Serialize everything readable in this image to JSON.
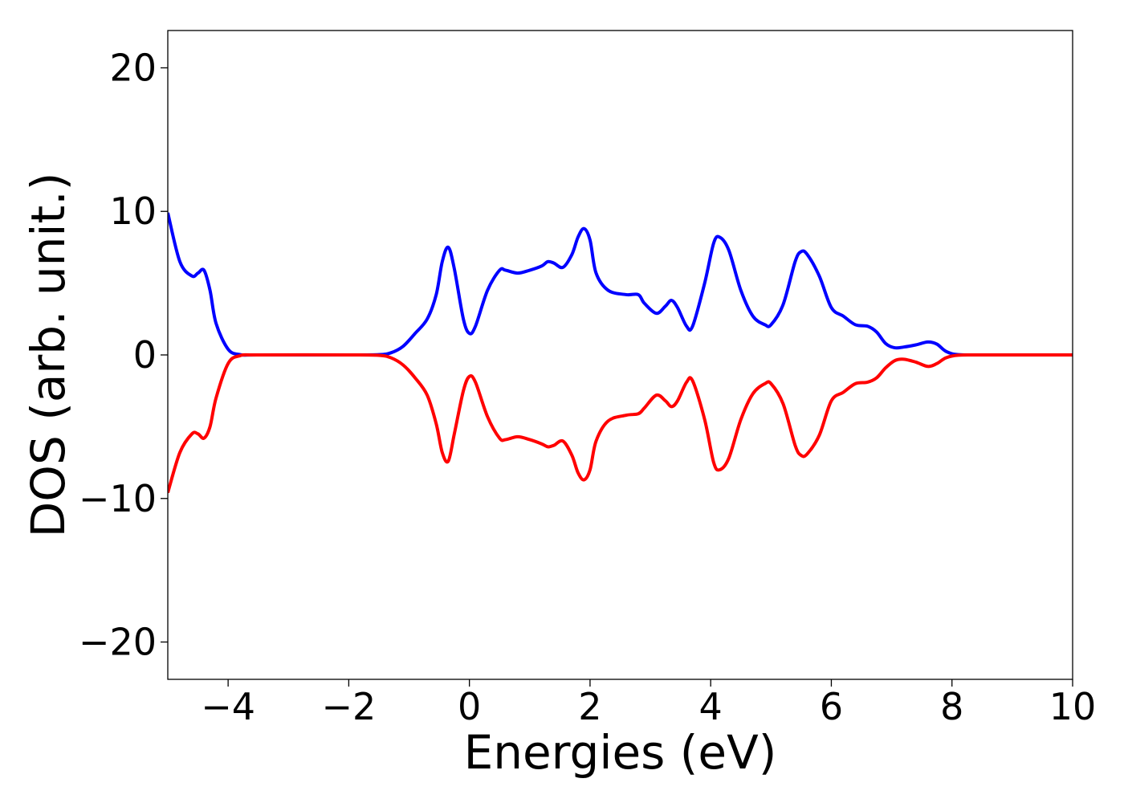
{
  "chart_data": {
    "type": "line",
    "title": "",
    "xlabel": "Energies (eV)",
    "ylabel": "DOS (arb. unit.)",
    "xlim": [
      -5,
      10
    ],
    "ylim": [
      -22.6,
      22.6
    ],
    "x_ticks": [
      {
        "value": -4,
        "label": "−4"
      },
      {
        "value": -2,
        "label": "−2"
      },
      {
        "value": 0,
        "label": "0"
      },
      {
        "value": 2,
        "label": "2"
      },
      {
        "value": 4,
        "label": "4"
      },
      {
        "value": 6,
        "label": "6"
      },
      {
        "value": 8,
        "label": "8"
      },
      {
        "value": 10,
        "label": "10"
      }
    ],
    "y_ticks": [
      {
        "value": 20,
        "label": "20"
      },
      {
        "value": 10,
        "label": "10"
      },
      {
        "value": 0,
        "label": "0"
      },
      {
        "value": -10,
        "label": "−10"
      },
      {
        "value": -20,
        "label": "−20"
      }
    ],
    "grid": false,
    "legend": "none",
    "series": [
      {
        "color": "#0000ff",
        "x": [
          -5,
          -4.8,
          -4.6,
          -4.5,
          -4.4,
          -4.3,
          -4.2,
          -4.0,
          -3.8,
          -3.5,
          -2.0,
          -1.5,
          -1.3,
          -1.1,
          -0.9,
          -0.7,
          -0.55,
          -0.45,
          -0.35,
          -0.25,
          -0.1,
          0.0,
          0.1,
          0.3,
          0.5,
          0.6,
          0.8,
          1.0,
          1.2,
          1.3,
          1.4,
          1.55,
          1.7,
          1.8,
          1.9,
          2.0,
          2.1,
          2.3,
          2.6,
          2.8,
          2.9,
          3.1,
          3.25,
          3.35,
          3.45,
          3.6,
          3.7,
          3.9,
          4.05,
          4.15,
          4.3,
          4.5,
          4.7,
          4.9,
          5.0,
          5.2,
          5.4,
          5.5,
          5.6,
          5.8,
          6.0,
          6.2,
          6.4,
          6.6,
          6.75,
          6.9,
          7.05,
          7.2,
          7.4,
          7.6,
          7.75,
          7.9,
          8.1,
          8.5,
          10
        ],
        "y": [
          9.9,
          6.5,
          5.5,
          5.7,
          5.9,
          4.5,
          2.2,
          0.4,
          0.02,
          0,
          0,
          0.02,
          0.15,
          0.6,
          1.5,
          2.5,
          4.2,
          6.5,
          7.5,
          6.0,
          2.5,
          1.5,
          2.0,
          4.5,
          5.9,
          5.9,
          5.7,
          5.9,
          6.2,
          6.5,
          6.4,
          6.1,
          7.0,
          8.2,
          8.8,
          8.0,
          5.7,
          4.5,
          4.2,
          4.2,
          3.6,
          2.9,
          3.4,
          3.8,
          3.3,
          2.0,
          2.0,
          5.0,
          7.8,
          8.2,
          7.3,
          4.5,
          2.7,
          2.1,
          2.1,
          3.5,
          6.5,
          7.2,
          7.0,
          5.5,
          3.3,
          2.7,
          2.1,
          2.0,
          1.6,
          0.8,
          0.5,
          0.55,
          0.7,
          0.9,
          0.75,
          0.25,
          0.02,
          0,
          0
        ]
      },
      {
        "color": "#ff0000",
        "x": [
          -5,
          -4.8,
          -4.6,
          -4.5,
          -4.4,
          -4.3,
          -4.2,
          -4.0,
          -3.8,
          -3.5,
          -2.0,
          -1.5,
          -1.3,
          -1.1,
          -0.9,
          -0.7,
          -0.55,
          -0.45,
          -0.35,
          -0.25,
          -0.1,
          0.0,
          0.1,
          0.3,
          0.5,
          0.6,
          0.8,
          1.0,
          1.2,
          1.3,
          1.4,
          1.55,
          1.7,
          1.8,
          1.9,
          2.0,
          2.1,
          2.3,
          2.6,
          2.8,
          2.9,
          3.1,
          3.25,
          3.35,
          3.45,
          3.6,
          3.7,
          3.9,
          4.05,
          4.15,
          4.3,
          4.5,
          4.7,
          4.9,
          5.0,
          5.2,
          5.4,
          5.5,
          5.6,
          5.8,
          6.0,
          6.2,
          6.4,
          6.6,
          6.75,
          6.9,
          7.05,
          7.2,
          7.4,
          7.6,
          7.75,
          7.9,
          8.1,
          8.5,
          10
        ],
        "y": [
          -9.6,
          -6.8,
          -5.5,
          -5.5,
          -5.8,
          -5.0,
          -3.0,
          -0.6,
          -0.05,
          0,
          0,
          -0.03,
          -0.2,
          -0.7,
          -1.6,
          -2.8,
          -4.8,
          -6.8,
          -7.4,
          -5.5,
          -2.5,
          -1.5,
          -1.9,
          -4.3,
          -5.8,
          -5.9,
          -5.7,
          -5.9,
          -6.2,
          -6.4,
          -6.3,
          -6.0,
          -7.0,
          -8.2,
          -8.7,
          -8.0,
          -6.0,
          -4.6,
          -4.2,
          -4.1,
          -3.7,
          -2.8,
          -3.2,
          -3.6,
          -3.2,
          -1.9,
          -1.8,
          -4.5,
          -7.5,
          -8.0,
          -7.2,
          -4.5,
          -2.7,
          -2.0,
          -2.0,
          -3.4,
          -6.3,
          -7.0,
          -6.9,
          -5.6,
          -3.2,
          -2.6,
          -2.0,
          -1.9,
          -1.6,
          -0.9,
          -0.4,
          -0.3,
          -0.5,
          -0.8,
          -0.6,
          -0.2,
          -0.02,
          0,
          0
        ]
      }
    ]
  }
}
